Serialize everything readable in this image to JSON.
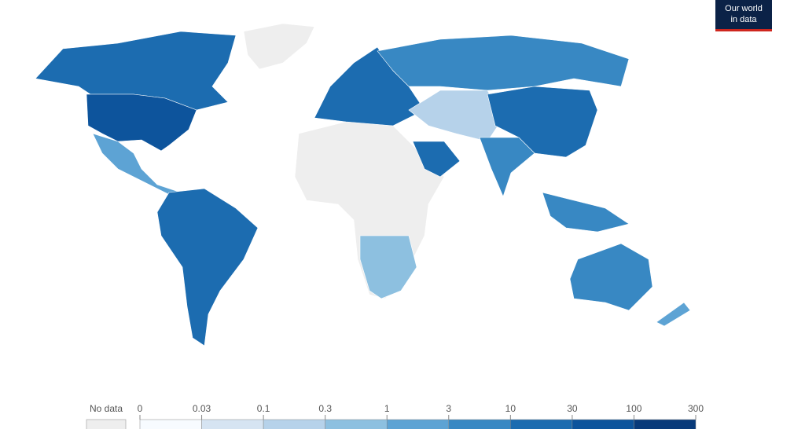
{
  "logo": {
    "lines": [
      "Our world",
      "in data"
    ]
  },
  "legend": {
    "no_data_label": "No data",
    "no_data_color": "#eeeeee",
    "ticks": [
      0,
      0.03,
      0.1,
      0.3,
      1,
      3,
      10,
      30,
      100,
      300
    ],
    "colors": [
      "#f7fbff",
      "#d6e4f2",
      "#b6d2ea",
      "#8dc0e0",
      "#5da3d4",
      "#3888c3",
      "#1c6cb0",
      "#0d549c",
      "#083a7a"
    ]
  }
}
